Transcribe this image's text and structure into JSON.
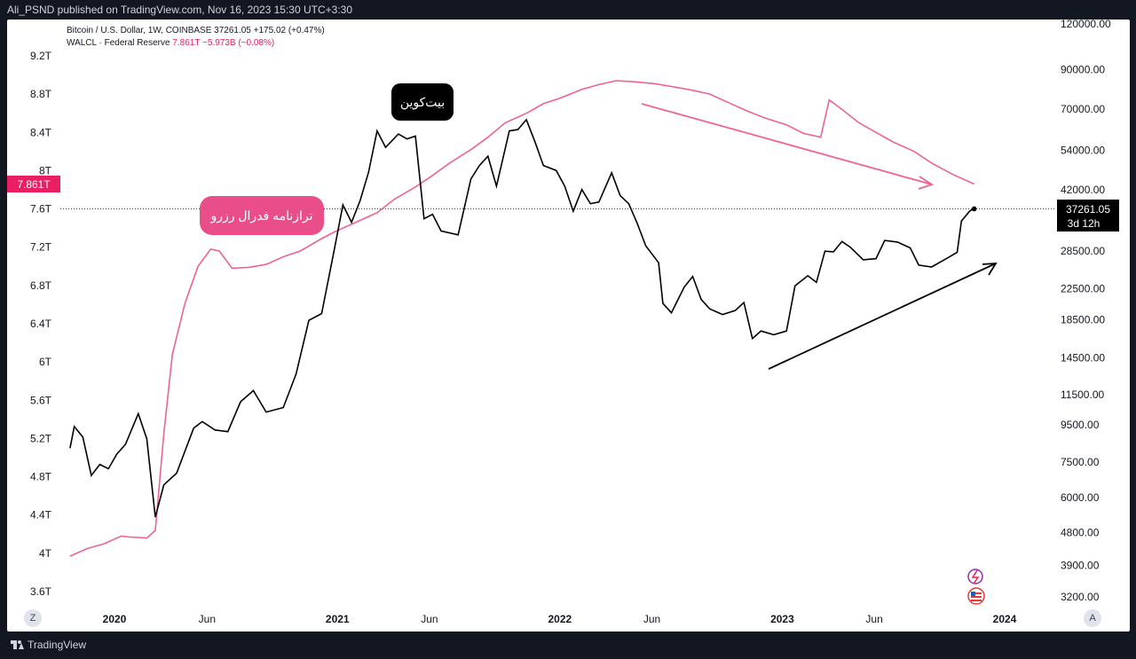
{
  "header": {
    "publisher": "Ali_PSND published on TradingView.com, Nov 16, 2023 15:30 UTC+3:30"
  },
  "legend": {
    "line1": "Bitcoin / U.S. Dollar, 1W, COINBASE  37261.05  +175.02 (+0.47%)",
    "line2_name": "WALCL · Federal Reserve",
    "line2_values": "7.861T  −5.973B (−0.08%)"
  },
  "colors": {
    "btc": "#000000",
    "walcl": "#f06292",
    "walcl_label": "#e91e63",
    "background": "#ffffff",
    "frame": "#131722"
  },
  "annotations": {
    "btc_label": "بیت‌کوین",
    "walcl_label": "ترازنامه فدرال رزرو"
  },
  "badges": {
    "walcl_last": "7.861T",
    "btc_last": "37261.05",
    "btc_countdown": "3d 12h"
  },
  "buttons": {
    "zoom_left": "Z",
    "auto_right": "A"
  },
  "footer": {
    "brand": "TradingView"
  },
  "chart_data": {
    "type": "line",
    "left_axis": {
      "series": "WALCL",
      "scale": "linear",
      "ticks": [
        "9.2T",
        "8.8T",
        "8.4T",
        "8T",
        "7.6T",
        "7.2T",
        "6.8T",
        "6.4T",
        "6T",
        "5.6T",
        "5.2T",
        "4.8T",
        "4.4T",
        "4T",
        "3.6T"
      ],
      "tick_values": [
        9.2,
        8.8,
        8.4,
        8.0,
        7.6,
        7.2,
        6.8,
        6.4,
        6.0,
        5.6,
        5.2,
        4.8,
        4.4,
        4.0,
        3.6
      ]
    },
    "right_axis": {
      "series": "BTCUSD",
      "scale": "log",
      "ticks": [
        "120000.00",
        "90000.00",
        "70000.00",
        "54000.00",
        "42000.00",
        "28500.00",
        "22500.00",
        "18500.00",
        "14500.00",
        "11500.00",
        "9500.00",
        "7500.00",
        "6000.00",
        "4800.00",
        "3900.00",
        "3200.00"
      ],
      "tick_values": [
        120000,
        90000,
        70000,
        54000,
        42000,
        28500,
        22500,
        18500,
        14500,
        11500,
        9500,
        7500,
        6000,
        4800,
        3900,
        3200
      ]
    },
    "x_axis": {
      "ticks": [
        "2020",
        "Jun",
        "2021",
        "Jun",
        "2022",
        "Jun",
        "2023",
        "Jun",
        "2024"
      ],
      "tick_dates": [
        "2020-01-01",
        "2020-06-01",
        "2021-01-01",
        "2021-06-01",
        "2022-01-01",
        "2022-06-01",
        "2023-01-01",
        "2023-06-01",
        "2024-01-01"
      ]
    },
    "series": [
      {
        "name": "Bitcoin / U.S. Dollar",
        "axis": "right",
        "points": [
          [
            "2019-10-20",
            8200
          ],
          [
            "2019-10-27",
            9400
          ],
          [
            "2019-11-10",
            8800
          ],
          [
            "2019-11-24",
            6900
          ],
          [
            "2019-12-08",
            7400
          ],
          [
            "2019-12-22",
            7200
          ],
          [
            "2020-01-05",
            7900
          ],
          [
            "2020-01-19",
            8400
          ],
          [
            "2020-02-09",
            10200
          ],
          [
            "2020-02-23",
            8700
          ],
          [
            "2020-03-08",
            5300
          ],
          [
            "2020-03-22",
            6500
          ],
          [
            "2020-04-12",
            7000
          ],
          [
            "2020-05-10",
            9300
          ],
          [
            "2020-05-24",
            9700
          ],
          [
            "2020-06-14",
            9200
          ],
          [
            "2020-07-05",
            9100
          ],
          [
            "2020-07-26",
            11000
          ],
          [
            "2020-08-16",
            11800
          ],
          [
            "2020-09-06",
            10300
          ],
          [
            "2020-10-04",
            10600
          ],
          [
            "2020-10-25",
            13100
          ],
          [
            "2020-11-15",
            18400
          ],
          [
            "2020-12-06",
            19200
          ],
          [
            "2020-12-27",
            28900
          ],
          [
            "2021-01-10",
            38200
          ],
          [
            "2021-01-24",
            34200
          ],
          [
            "2021-02-07",
            39200
          ],
          [
            "2021-02-21",
            47000
          ],
          [
            "2021-03-07",
            61000
          ],
          [
            "2021-03-21",
            55000
          ],
          [
            "2021-04-11",
            59800
          ],
          [
            "2021-04-25",
            58000
          ],
          [
            "2021-05-09",
            59000
          ],
          [
            "2021-05-23",
            35000
          ],
          [
            "2021-06-06",
            36000
          ],
          [
            "2021-06-20",
            32400
          ],
          [
            "2021-07-18",
            31600
          ],
          [
            "2021-08-08",
            45000
          ],
          [
            "2021-08-22",
            49000
          ],
          [
            "2021-09-05",
            52000
          ],
          [
            "2021-09-19",
            43000
          ],
          [
            "2021-10-10",
            61000
          ],
          [
            "2021-10-24",
            61500
          ],
          [
            "2021-11-07",
            65500
          ],
          [
            "2021-11-21",
            57000
          ],
          [
            "2021-12-05",
            49000
          ],
          [
            "2021-12-26",
            47500
          ],
          [
            "2022-01-09",
            43000
          ],
          [
            "2022-01-23",
            36700
          ],
          [
            "2022-02-06",
            42100
          ],
          [
            "2022-02-20",
            38500
          ],
          [
            "2022-03-06",
            38900
          ],
          [
            "2022-03-27",
            46800
          ],
          [
            "2022-04-10",
            40500
          ],
          [
            "2022-04-24",
            38500
          ],
          [
            "2022-05-08",
            34000
          ],
          [
            "2022-05-22",
            29500
          ],
          [
            "2022-06-12",
            26500
          ],
          [
            "2022-06-19",
            20500
          ],
          [
            "2022-07-03",
            19300
          ],
          [
            "2022-07-24",
            22700
          ],
          [
            "2022-08-07",
            24300
          ],
          [
            "2022-08-21",
            21000
          ],
          [
            "2022-09-04",
            19800
          ],
          [
            "2022-09-25",
            19100
          ],
          [
            "2022-10-16",
            19600
          ],
          [
            "2022-10-30",
            20600
          ],
          [
            "2022-11-13",
            16400
          ],
          [
            "2022-11-27",
            17200
          ],
          [
            "2022-12-18",
            16800
          ],
          [
            "2023-01-08",
            17200
          ],
          [
            "2023-01-22",
            22900
          ],
          [
            "2023-02-12",
            24400
          ],
          [
            "2023-02-26",
            23400
          ],
          [
            "2023-03-12",
            28500
          ],
          [
            "2023-03-26",
            28400
          ],
          [
            "2023-04-09",
            30300
          ],
          [
            "2023-04-23",
            29200
          ],
          [
            "2023-05-14",
            27000
          ],
          [
            "2023-06-04",
            27200
          ],
          [
            "2023-06-18",
            30500
          ],
          [
            "2023-07-09",
            30200
          ],
          [
            "2023-07-30",
            29100
          ],
          [
            "2023-08-13",
            26100
          ],
          [
            "2023-09-03",
            25800
          ],
          [
            "2023-09-24",
            27000
          ],
          [
            "2023-10-15",
            28300
          ],
          [
            "2023-10-22",
            34500
          ],
          [
            "2023-11-05",
            36800
          ],
          [
            "2023-11-12",
            37261.05
          ]
        ]
      },
      {
        "name": "WALCL · Federal Reserve",
        "axis": "left",
        "points": [
          [
            "2019-10-20",
            3.97
          ],
          [
            "2019-11-17",
            4.05
          ],
          [
            "2019-12-15",
            4.1
          ],
          [
            "2020-01-12",
            4.18
          ],
          [
            "2020-01-26",
            4.17
          ],
          [
            "2020-02-23",
            4.16
          ],
          [
            "2020-03-08",
            4.24
          ],
          [
            "2020-03-22",
            5.25
          ],
          [
            "2020-04-05",
            6.08
          ],
          [
            "2020-04-26",
            6.62
          ],
          [
            "2020-05-17",
            7.0
          ],
          [
            "2020-06-07",
            7.18
          ],
          [
            "2020-06-21",
            7.16
          ],
          [
            "2020-07-12",
            6.98
          ],
          [
            "2020-08-09",
            6.99
          ],
          [
            "2020-09-06",
            7.02
          ],
          [
            "2020-10-04",
            7.1
          ],
          [
            "2020-11-01",
            7.16
          ],
          [
            "2020-12-06",
            7.29
          ],
          [
            "2020-12-27",
            7.36
          ],
          [
            "2021-02-07",
            7.48
          ],
          [
            "2021-03-07",
            7.56
          ],
          [
            "2021-04-04",
            7.7
          ],
          [
            "2021-05-09",
            7.83
          ],
          [
            "2021-06-06",
            7.95
          ],
          [
            "2021-07-04",
            8.08
          ],
          [
            "2021-08-08",
            8.22
          ],
          [
            "2021-09-05",
            8.35
          ],
          [
            "2021-10-03",
            8.5
          ],
          [
            "2021-11-07",
            8.6
          ],
          [
            "2021-12-05",
            8.7
          ],
          [
            "2022-01-02",
            8.76
          ],
          [
            "2022-02-06",
            8.85
          ],
          [
            "2022-03-06",
            8.9
          ],
          [
            "2022-04-03",
            8.94
          ],
          [
            "2022-05-01",
            8.93
          ],
          [
            "2022-06-05",
            8.91
          ],
          [
            "2022-07-03",
            8.88
          ],
          [
            "2022-08-07",
            8.84
          ],
          [
            "2022-09-04",
            8.8
          ],
          [
            "2022-10-02",
            8.72
          ],
          [
            "2022-11-06",
            8.62
          ],
          [
            "2022-12-04",
            8.55
          ],
          [
            "2023-01-08",
            8.48
          ],
          [
            "2023-02-05",
            8.39
          ],
          [
            "2023-03-05",
            8.35
          ],
          [
            "2023-03-19",
            8.74
          ],
          [
            "2023-04-09",
            8.64
          ],
          [
            "2023-05-07",
            8.5
          ],
          [
            "2023-06-04",
            8.4
          ],
          [
            "2023-07-02",
            8.3
          ],
          [
            "2023-08-06",
            8.2
          ],
          [
            "2023-09-03",
            8.08
          ],
          [
            "2023-10-08",
            7.96
          ],
          [
            "2023-11-12",
            7.86
          ]
        ]
      }
    ],
    "grid": false,
    "last_price_line": true
  }
}
